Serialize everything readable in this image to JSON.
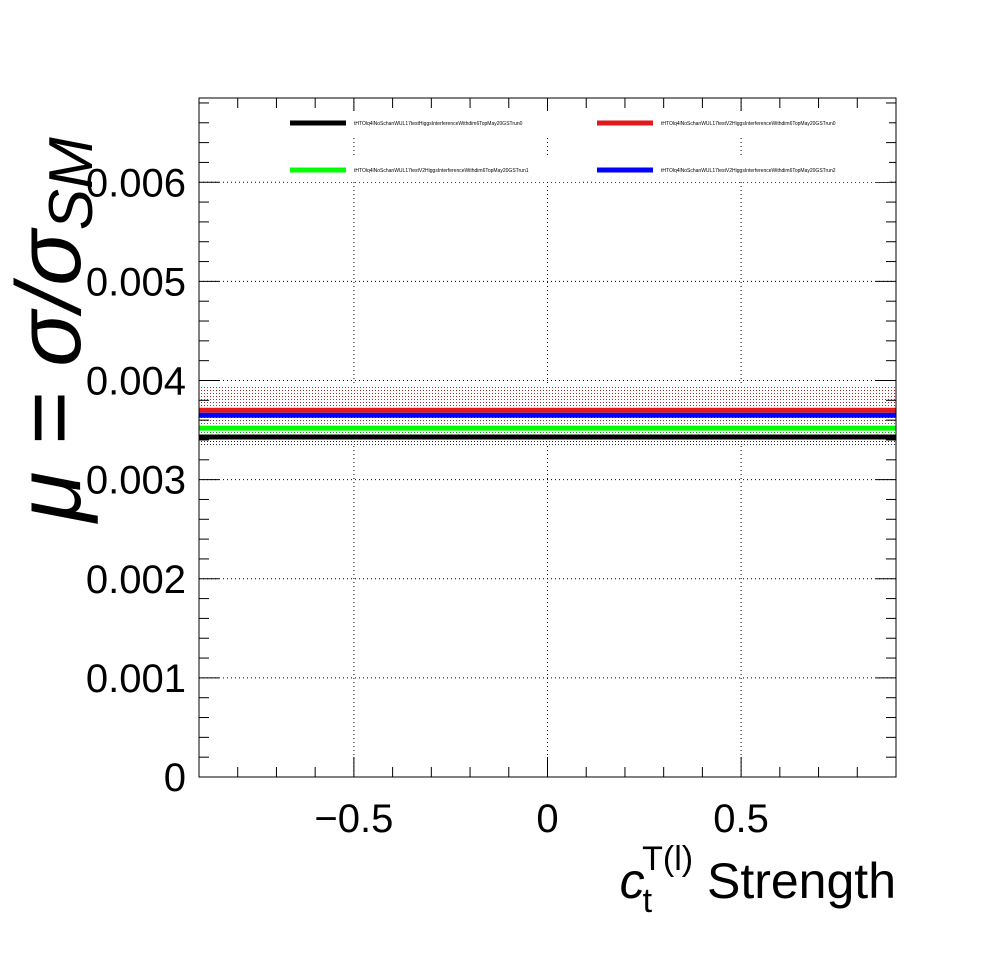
{
  "chart_data": {
    "type": "line",
    "xlabel": {
      "main": "c",
      "sub": "t",
      "sup": "T(l)",
      "suffix": " Strength"
    },
    "ylabel": {
      "lhs": "μ = σ/σ",
      "sub": "SM"
    },
    "xlim": [
      -0.9,
      0.9
    ],
    "ylim": [
      0,
      0.00685
    ],
    "grid": true,
    "legend_position": "top",
    "x_ticks": [
      -0.5,
      0,
      0.5
    ],
    "x_tick_labels": [
      "−0.5",
      "0",
      "0.5"
    ],
    "y_ticks": [
      0,
      0.001,
      0.002,
      0.003,
      0.004,
      0.005,
      0.006
    ],
    "y_tick_labels": [
      "0",
      "0.001",
      "0.002",
      "0.003",
      "0.004",
      "0.005",
      "0.006"
    ],
    "x": [
      -0.9,
      0.9
    ],
    "series": [
      {
        "name": "tHTOlq4lNoSchanWUL17testHiggsInterferenceWithdim6TopMay20GSTrun0",
        "color": "#000000",
        "values": [
          0.00343,
          0.00343
        ],
        "band": [
          0.00335,
          0.00351
        ]
      },
      {
        "name": "tHTOlq4lNoSchanWUL17testV2HiggsInterferenceWithdim6TopMay20GSTrun0",
        "color": "#e31a1c",
        "values": [
          0.0037,
          0.0037
        ],
        "band": [
          0.00348,
          0.00395
        ]
      },
      {
        "name": "tHTOlq4lNoSchanWUL17testV2HiggsInterferenceWithdim6TopMay20GSTrun1",
        "color": "#00ff00",
        "values": [
          0.00352,
          0.00352
        ],
        "band": [
          0.00347,
          0.00357
        ]
      },
      {
        "name": "tHTOlq4lNoSchanWUL17testV2HiggsInterferenceWithdim6TopMay20GSTrun2",
        "color": "#0000ff",
        "values": [
          0.00365,
          0.00365
        ],
        "band": [
          0.0036,
          0.0037
        ]
      }
    ]
  }
}
